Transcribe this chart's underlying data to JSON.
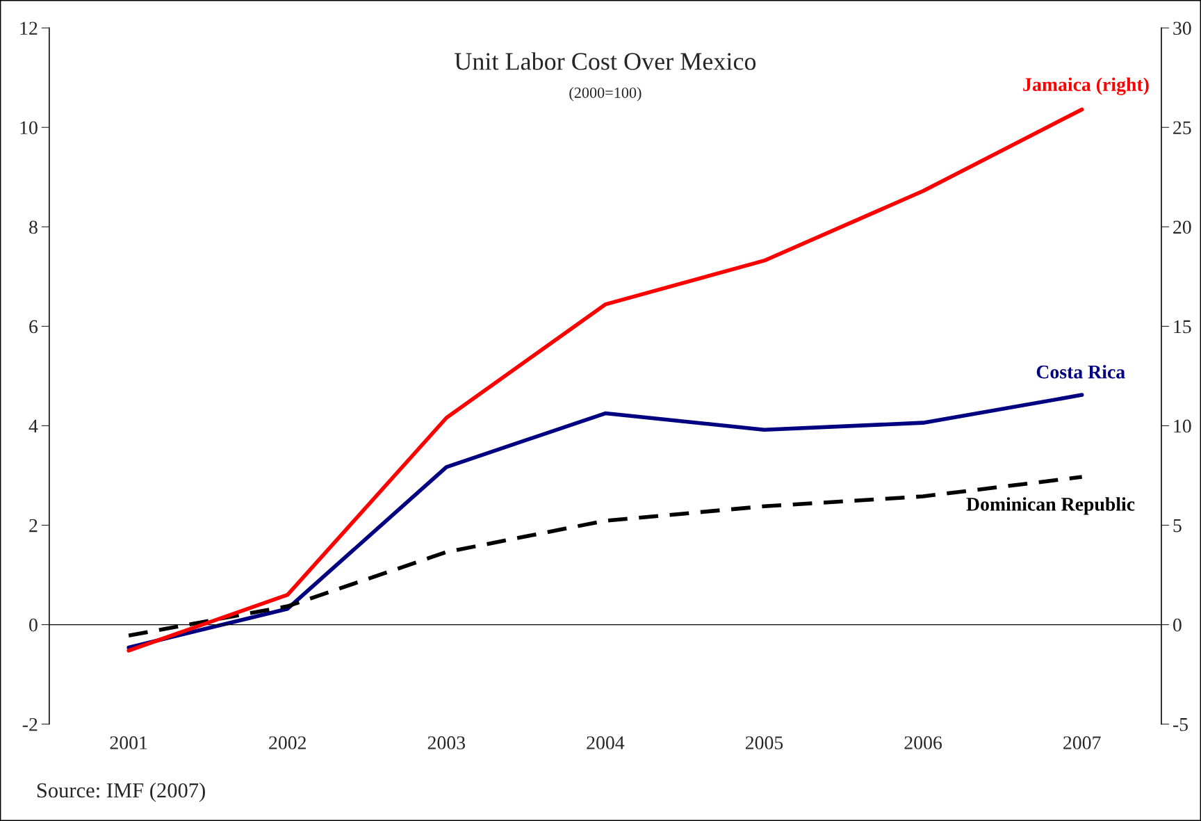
{
  "chart_data": {
    "type": "line",
    "title": "Unit Labor Cost Over Mexico",
    "subtitle": "(2000=100)",
    "categories": [
      "2001",
      "2002",
      "2003",
      "2004",
      "2005",
      "2006",
      "2007"
    ],
    "series": [
      {
        "name": "Jamaica (right)",
        "color": "#ff0000",
        "axis": "y2",
        "line_style": "solid",
        "values": [
          -1.3,
          1.5,
          10.4,
          16.1,
          18.3,
          21.8,
          25.9
        ]
      },
      {
        "name": "Costa Rica",
        "color": "#000080",
        "line_style": "solid",
        "values": [
          -0.46,
          0.32,
          3.17,
          4.25,
          3.92,
          4.06,
          4.62
        ]
      },
      {
        "name": "Dominican Republic",
        "color": "#000000",
        "line_style": "dashed",
        "values": [
          -0.22,
          0.37,
          1.46,
          2.09,
          2.38,
          2.58,
          2.97
        ]
      }
    ],
    "ylim": [
      -2,
      12
    ],
    "yticks": [
      -2,
      0,
      2,
      4,
      6,
      8,
      10,
      12
    ],
    "y2lim": [
      -5,
      30
    ],
    "y2ticks": [
      -5,
      0,
      5,
      10,
      15,
      20,
      25,
      30
    ],
    "ref_lines": [
      {
        "axis": "y",
        "value": 0,
        "color": "#000000",
        "line_style": "solid"
      }
    ],
    "grid": false,
    "legend": false,
    "marker": "none",
    "annotations": [
      "Source: IMF (2007)"
    ]
  }
}
